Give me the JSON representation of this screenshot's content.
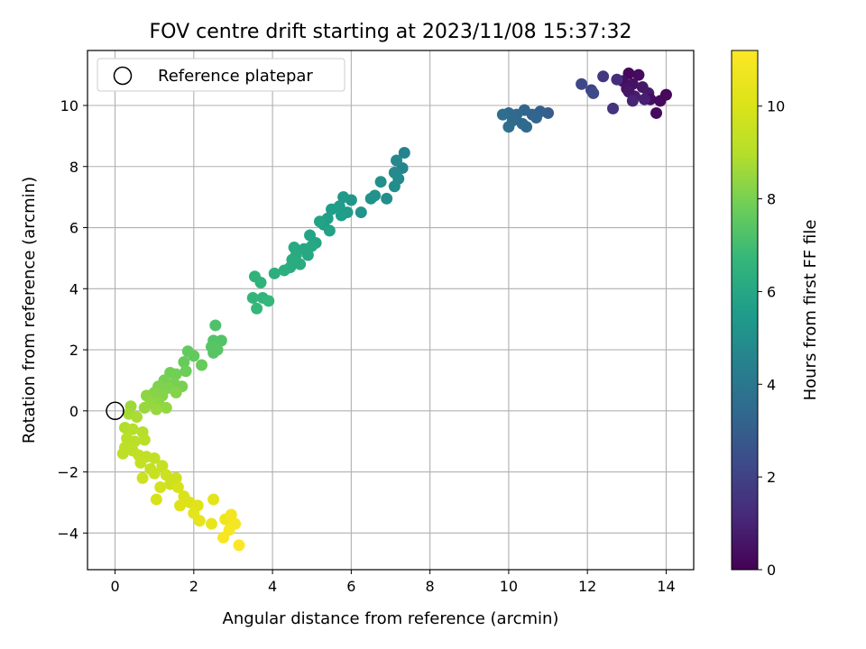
{
  "chart_data": {
    "type": "scatter",
    "title": "FOV centre drift starting at 2023/11/08 15:37:32",
    "xlabel": "Angular distance from reference (arcmin)",
    "ylabel": "Rotation from reference (arcmin)",
    "xlim": [
      -0.7,
      14.7
    ],
    "ylim": [
      -5.2,
      11.8
    ],
    "xticks": [
      0,
      2,
      4,
      6,
      8,
      10,
      12,
      14
    ],
    "yticks": [
      -4,
      -2,
      0,
      2,
      4,
      6,
      8,
      10
    ],
    "grid": true,
    "legend": {
      "position": "upper left",
      "entries": [
        "Reference platepar"
      ]
    },
    "reference_point": {
      "x": 0,
      "y": 0,
      "marker": "open-circle"
    },
    "colorbar": {
      "label": "Hours from first FF file",
      "colormap": "viridis",
      "range": [
        0,
        11.2
      ],
      "ticks": [
        0,
        2,
        4,
        6,
        8,
        10
      ]
    },
    "series": [
      {
        "color_value_key": "hours",
        "points": [
          {
            "x": 13.05,
            "y": 11.05,
            "hours": 0.2
          },
          {
            "x": 13.3,
            "y": 11.0,
            "hours": 0.3
          },
          {
            "x": 12.9,
            "y": 10.8,
            "hours": 0.4
          },
          {
            "x": 13.15,
            "y": 10.7,
            "hours": 0.5
          },
          {
            "x": 13.0,
            "y": 10.55,
            "hours": 0.5
          },
          {
            "x": 13.4,
            "y": 10.6,
            "hours": 0.6
          },
          {
            "x": 13.55,
            "y": 10.4,
            "hours": 0.7
          },
          {
            "x": 13.2,
            "y": 10.3,
            "hours": 0.8
          },
          {
            "x": 13.05,
            "y": 10.45,
            "hours": 0.6
          },
          {
            "x": 13.6,
            "y": 10.2,
            "hours": 0.4
          },
          {
            "x": 13.85,
            "y": 10.15,
            "hours": 0.3
          },
          {
            "x": 14.0,
            "y": 10.35,
            "hours": 0.2
          },
          {
            "x": 13.75,
            "y": 9.75,
            "hours": 0.3
          },
          {
            "x": 13.45,
            "y": 10.2,
            "hours": 0.9
          },
          {
            "x": 13.15,
            "y": 10.15,
            "hours": 1.0
          },
          {
            "x": 12.75,
            "y": 10.85,
            "hours": 1.3
          },
          {
            "x": 12.4,
            "y": 10.95,
            "hours": 1.6
          },
          {
            "x": 12.1,
            "y": 10.5,
            "hours": 2.0
          },
          {
            "x": 11.85,
            "y": 10.7,
            "hours": 2.2
          },
          {
            "x": 12.65,
            "y": 9.9,
            "hours": 1.5
          },
          {
            "x": 12.15,
            "y": 10.4,
            "hours": 2.3
          },
          {
            "x": 11.0,
            "y": 9.75,
            "hours": 3.0
          },
          {
            "x": 10.8,
            "y": 9.8,
            "hours": 3.1
          },
          {
            "x": 10.6,
            "y": 9.7,
            "hours": 3.2
          },
          {
            "x": 10.4,
            "y": 9.85,
            "hours": 3.3
          },
          {
            "x": 10.2,
            "y": 9.7,
            "hours": 3.4
          },
          {
            "x": 10.0,
            "y": 9.75,
            "hours": 3.5
          },
          {
            "x": 9.85,
            "y": 9.7,
            "hours": 3.6
          },
          {
            "x": 10.1,
            "y": 9.5,
            "hours": 3.5
          },
          {
            "x": 10.35,
            "y": 9.4,
            "hours": 3.4
          },
          {
            "x": 10.7,
            "y": 9.6,
            "hours": 3.3
          },
          {
            "x": 10.0,
            "y": 9.3,
            "hours": 3.6
          },
          {
            "x": 10.45,
            "y": 9.3,
            "hours": 3.5
          },
          {
            "x": 7.35,
            "y": 8.45,
            "hours": 4.5
          },
          {
            "x": 7.3,
            "y": 7.95,
            "hours": 4.6
          },
          {
            "x": 7.15,
            "y": 8.2,
            "hours": 4.7
          },
          {
            "x": 7.1,
            "y": 7.8,
            "hours": 4.8
          },
          {
            "x": 7.2,
            "y": 7.6,
            "hours": 4.8
          },
          {
            "x": 7.1,
            "y": 7.35,
            "hours": 4.9
          },
          {
            "x": 6.75,
            "y": 7.5,
            "hours": 5.0
          },
          {
            "x": 6.9,
            "y": 6.95,
            "hours": 5.0
          },
          {
            "x": 6.6,
            "y": 7.05,
            "hours": 5.1
          },
          {
            "x": 6.5,
            "y": 6.95,
            "hours": 5.1
          },
          {
            "x": 6.25,
            "y": 6.5,
            "hours": 5.2
          },
          {
            "x": 6.0,
            "y": 6.9,
            "hours": 5.3
          },
          {
            "x": 5.8,
            "y": 7.0,
            "hours": 5.4
          },
          {
            "x": 5.7,
            "y": 6.7,
            "hours": 5.5
          },
          {
            "x": 5.9,
            "y": 6.5,
            "hours": 5.5
          },
          {
            "x": 5.75,
            "y": 6.4,
            "hours": 5.6
          },
          {
            "x": 5.5,
            "y": 6.6,
            "hours": 5.6
          },
          {
            "x": 5.4,
            "y": 6.3,
            "hours": 5.7
          },
          {
            "x": 5.3,
            "y": 6.1,
            "hours": 5.7
          },
          {
            "x": 5.2,
            "y": 6.2,
            "hours": 5.8
          },
          {
            "x": 5.45,
            "y": 5.9,
            "hours": 5.8
          },
          {
            "x": 5.1,
            "y": 5.5,
            "hours": 5.9
          },
          {
            "x": 4.95,
            "y": 5.75,
            "hours": 5.9
          },
          {
            "x": 5.0,
            "y": 5.4,
            "hours": 6.0
          },
          {
            "x": 4.8,
            "y": 5.3,
            "hours": 6.0
          },
          {
            "x": 4.9,
            "y": 5.1,
            "hours": 6.0
          },
          {
            "x": 4.55,
            "y": 5.35,
            "hours": 6.1
          },
          {
            "x": 4.6,
            "y": 5.1,
            "hours": 6.1
          },
          {
            "x": 4.7,
            "y": 4.8,
            "hours": 6.2
          },
          {
            "x": 4.45,
            "y": 4.7,
            "hours": 6.2
          },
          {
            "x": 4.5,
            "y": 4.95,
            "hours": 6.2
          },
          {
            "x": 4.3,
            "y": 4.6,
            "hours": 6.3
          },
          {
            "x": 4.05,
            "y": 4.5,
            "hours": 6.3
          },
          {
            "x": 3.7,
            "y": 4.2,
            "hours": 6.5
          },
          {
            "x": 3.55,
            "y": 4.4,
            "hours": 6.5
          },
          {
            "x": 3.5,
            "y": 3.7,
            "hours": 6.6
          },
          {
            "x": 3.75,
            "y": 3.7,
            "hours": 6.6
          },
          {
            "x": 3.9,
            "y": 3.6,
            "hours": 6.7
          },
          {
            "x": 3.6,
            "y": 3.35,
            "hours": 6.7
          },
          {
            "x": 2.55,
            "y": 2.8,
            "hours": 7.2
          },
          {
            "x": 2.5,
            "y": 2.3,
            "hours": 7.3
          },
          {
            "x": 2.7,
            "y": 2.3,
            "hours": 7.3
          },
          {
            "x": 2.45,
            "y": 2.1,
            "hours": 7.4
          },
          {
            "x": 2.6,
            "y": 2.0,
            "hours": 7.4
          },
          {
            "x": 2.5,
            "y": 1.9,
            "hours": 7.4
          },
          {
            "x": 1.85,
            "y": 1.95,
            "hours": 7.6
          },
          {
            "x": 2.0,
            "y": 1.8,
            "hours": 7.6
          },
          {
            "x": 1.75,
            "y": 1.6,
            "hours": 7.7
          },
          {
            "x": 2.2,
            "y": 1.5,
            "hours": 7.7
          },
          {
            "x": 1.4,
            "y": 1.25,
            "hours": 7.9
          },
          {
            "x": 1.55,
            "y": 1.2,
            "hours": 7.9
          },
          {
            "x": 1.8,
            "y": 1.3,
            "hours": 7.8
          },
          {
            "x": 1.25,
            "y": 1.0,
            "hours": 8.0
          },
          {
            "x": 1.5,
            "y": 0.9,
            "hours": 8.0
          },
          {
            "x": 1.7,
            "y": 0.8,
            "hours": 8.0
          },
          {
            "x": 1.35,
            "y": 0.75,
            "hours": 8.1
          },
          {
            "x": 1.1,
            "y": 0.8,
            "hours": 8.1
          },
          {
            "x": 1.55,
            "y": 0.6,
            "hours": 8.2
          },
          {
            "x": 1.2,
            "y": 0.5,
            "hours": 8.2
          },
          {
            "x": 1.0,
            "y": 0.6,
            "hours": 8.2
          },
          {
            "x": 0.8,
            "y": 0.5,
            "hours": 8.3
          },
          {
            "x": 1.1,
            "y": 0.3,
            "hours": 8.3
          },
          {
            "x": 0.9,
            "y": 0.25,
            "hours": 8.4
          },
          {
            "x": 1.3,
            "y": 0.1,
            "hours": 8.4
          },
          {
            "x": 0.75,
            "y": 0.1,
            "hours": 8.5
          },
          {
            "x": 1.05,
            "y": 0.05,
            "hours": 8.5
          },
          {
            "x": 0.4,
            "y": 0.15,
            "hours": 8.6
          },
          {
            "x": 0.35,
            "y": -0.1,
            "hours": 8.7
          },
          {
            "x": 0.55,
            "y": -0.2,
            "hours": 8.8
          },
          {
            "x": 0.25,
            "y": -0.55,
            "hours": 8.9
          },
          {
            "x": 0.45,
            "y": -0.6,
            "hours": 9.0
          },
          {
            "x": 0.7,
            "y": -0.7,
            "hours": 9.0
          },
          {
            "x": 0.3,
            "y": -0.9,
            "hours": 9.1
          },
          {
            "x": 0.5,
            "y": -1.0,
            "hours": 9.1
          },
          {
            "x": 0.75,
            "y": -0.95,
            "hours": 9.1
          },
          {
            "x": 0.25,
            "y": -1.2,
            "hours": 9.2
          },
          {
            "x": 0.45,
            "y": -1.3,
            "hours": 9.2
          },
          {
            "x": 0.2,
            "y": -1.4,
            "hours": 9.2
          },
          {
            "x": 0.6,
            "y": -1.45,
            "hours": 9.3
          },
          {
            "x": 0.8,
            "y": -1.5,
            "hours": 9.3
          },
          {
            "x": 1.0,
            "y": -1.55,
            "hours": 9.3
          },
          {
            "x": 0.65,
            "y": -1.7,
            "hours": 9.4
          },
          {
            "x": 0.9,
            "y": -1.9,
            "hours": 9.4
          },
          {
            "x": 1.2,
            "y": -1.8,
            "hours": 9.5
          },
          {
            "x": 1.0,
            "y": -2.05,
            "hours": 9.5
          },
          {
            "x": 0.7,
            "y": -2.2,
            "hours": 9.6
          },
          {
            "x": 1.3,
            "y": -2.1,
            "hours": 9.6
          },
          {
            "x": 1.55,
            "y": -2.2,
            "hours": 9.7
          },
          {
            "x": 1.4,
            "y": -2.4,
            "hours": 9.7
          },
          {
            "x": 1.15,
            "y": -2.5,
            "hours": 9.8
          },
          {
            "x": 1.05,
            "y": -2.9,
            "hours": 9.9
          },
          {
            "x": 1.6,
            "y": -2.5,
            "hours": 9.9
          },
          {
            "x": 1.75,
            "y": -2.8,
            "hours": 10.0
          },
          {
            "x": 1.65,
            "y": -3.1,
            "hours": 10.1
          },
          {
            "x": 1.9,
            "y": -3.0,
            "hours": 10.1
          },
          {
            "x": 2.1,
            "y": -3.1,
            "hours": 10.2
          },
          {
            "x": 2.0,
            "y": -3.35,
            "hours": 10.3
          },
          {
            "x": 2.15,
            "y": -3.6,
            "hours": 10.4
          },
          {
            "x": 2.45,
            "y": -3.7,
            "hours": 10.5
          },
          {
            "x": 2.5,
            "y": -2.9,
            "hours": 10.3
          },
          {
            "x": 2.8,
            "y": -3.55,
            "hours": 10.7
          },
          {
            "x": 2.95,
            "y": -3.4,
            "hours": 10.8
          },
          {
            "x": 3.05,
            "y": -3.7,
            "hours": 10.9
          },
          {
            "x": 2.9,
            "y": -3.9,
            "hours": 11.0
          },
          {
            "x": 2.75,
            "y": -4.15,
            "hours": 11.0
          },
          {
            "x": 3.15,
            "y": -4.4,
            "hours": 11.2
          }
        ]
      }
    ]
  }
}
